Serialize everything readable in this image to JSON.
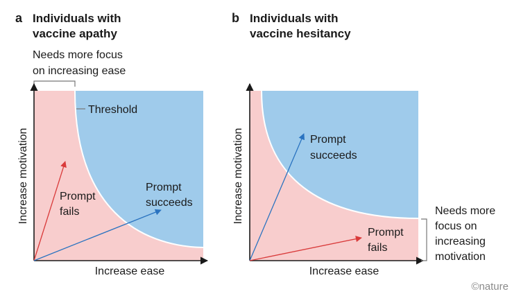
{
  "panels": [
    {
      "letter": "a",
      "title_line1": "Individuals with",
      "title_line2": "vaccine apathy",
      "focus_line1": "Needs more focus",
      "focus_line2": "on increasing ease",
      "threshold_label": "Threshold",
      "ylabel": "Increase motivation",
      "xlabel": "Increase ease",
      "fails_line1": "Prompt",
      "fails_line2": "fails",
      "succeeds_line1": "Prompt",
      "succeeds_line2": "succeeds"
    },
    {
      "letter": "b",
      "title_line1": "Individuals with",
      "title_line2": "vaccine hesitancy",
      "ylabel": "Increase motivation",
      "xlabel": "Increase ease",
      "succeeds_line1": "Prompt",
      "succeeds_line2": "succeeds",
      "fails_line1": "Prompt",
      "fails_line2": "fails",
      "focus_line1": "Needs more",
      "focus_line2": "focus on",
      "focus_line3": "increasing",
      "focus_line4": "motivation"
    }
  ],
  "credit": "©nature",
  "colors": {
    "fail_region": "#f8cdcd",
    "success_region": "#9fcbeb",
    "fail_arrow": "#d93a3a",
    "success_arrow": "#2a73c0",
    "axis": "#1a1a1a"
  }
}
